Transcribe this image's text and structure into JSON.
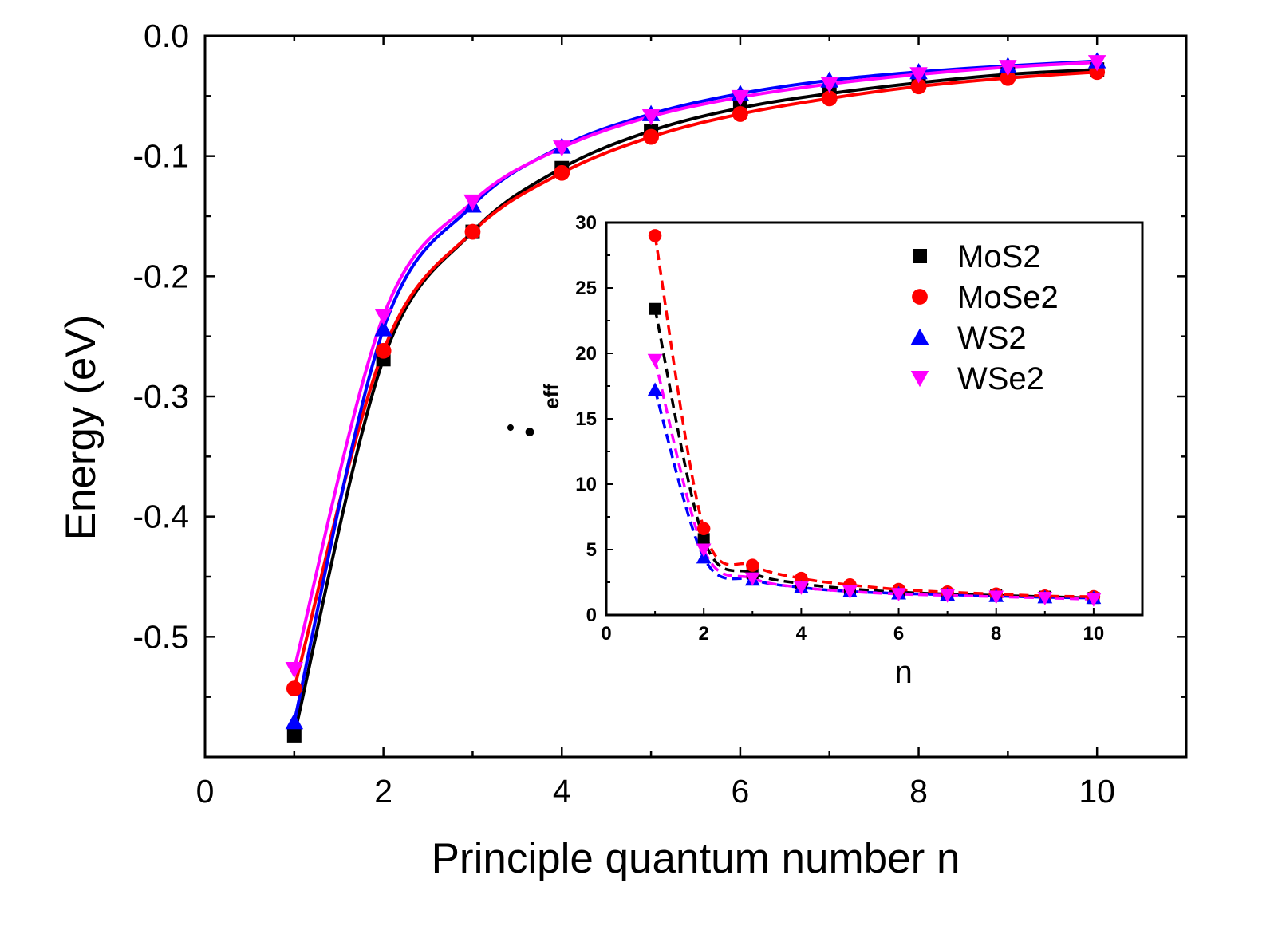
{
  "chart_data": [
    {
      "type": "scatter",
      "role": "main",
      "xlabel": "Principle quantum number n",
      "ylabel": "Energy (eV)",
      "xlim": [
        0,
        11
      ],
      "ylim": [
        -0.6,
        0.0
      ],
      "xticks": [
        "0",
        "2",
        "4",
        "6",
        "8",
        "10"
      ],
      "yticks": [
        "0.0",
        "-0.1",
        "-0.2",
        "-0.3",
        "-0.4",
        "-0.5"
      ],
      "x": [
        1,
        2,
        3,
        4,
        5,
        6,
        7,
        8,
        9,
        10
      ],
      "series": [
        {
          "name": "MoS2",
          "color": "#000000",
          "marker": "square",
          "values": [
            -0.582,
            -0.269,
            -0.163,
            -0.11,
            -0.079,
            -0.06,
            -0.048,
            -0.039,
            -0.032,
            -0.028
          ]
        },
        {
          "name": "MoSe2",
          "color": "#ff0000",
          "marker": "circle",
          "values": [
            -0.543,
            -0.262,
            -0.163,
            -0.114,
            -0.084,
            -0.065,
            -0.052,
            -0.042,
            -0.035,
            -0.03
          ]
        },
        {
          "name": "WS2",
          "color": "#0000ff",
          "marker": "triangle-up",
          "values": [
            -0.571,
            -0.244,
            -0.141,
            -0.092,
            -0.065,
            -0.048,
            -0.037,
            -0.03,
            -0.025,
            -0.021
          ]
        },
        {
          "name": "WSe2",
          "color": "#ff00ff",
          "marker": "triangle-down",
          "values": [
            -0.527,
            -0.233,
            -0.138,
            -0.093,
            -0.067,
            -0.051,
            -0.04,
            -0.032,
            -0.026,
            -0.022
          ]
        }
      ],
      "annotation": "•"
    },
    {
      "type": "scatter",
      "role": "inset",
      "xlabel": "n",
      "ylabel_main": "•",
      "ylabel_sub": "eff",
      "xlim": [
        0,
        11
      ],
      "ylim": [
        0,
        30
      ],
      "xticks": [
        "0",
        "2",
        "4",
        "6",
        "8",
        "10"
      ],
      "yticks": [
        "0",
        "5",
        "10",
        "15",
        "20",
        "25",
        "30"
      ],
      "x": [
        1,
        2,
        3,
        4,
        5,
        6,
        7,
        8,
        9,
        10
      ],
      "legend_position": "top-right",
      "series": [
        {
          "name": "MoS2",
          "color": "#000000",
          "marker": "square",
          "values": [
            23.4,
            5.8,
            3.2,
            2.4,
            2.0,
            1.75,
            1.6,
            1.5,
            1.4,
            1.3
          ]
        },
        {
          "name": "MoSe2",
          "color": "#ff0000",
          "marker": "circle",
          "values": [
            29.0,
            6.6,
            3.8,
            2.8,
            2.3,
            1.95,
            1.75,
            1.6,
            1.45,
            1.4
          ]
        },
        {
          "name": "WS2",
          "color": "#0000ff",
          "marker": "triangle-up",
          "values": [
            17.2,
            4.4,
            2.7,
            2.1,
            1.8,
            1.65,
            1.55,
            1.45,
            1.35,
            1.3
          ]
        },
        {
          "name": "WSe2",
          "color": "#ff00ff",
          "marker": "triangle-down",
          "values": [
            19.5,
            5.0,
            2.8,
            2.1,
            1.8,
            1.6,
            1.5,
            1.4,
            1.3,
            1.2
          ]
        }
      ]
    }
  ]
}
